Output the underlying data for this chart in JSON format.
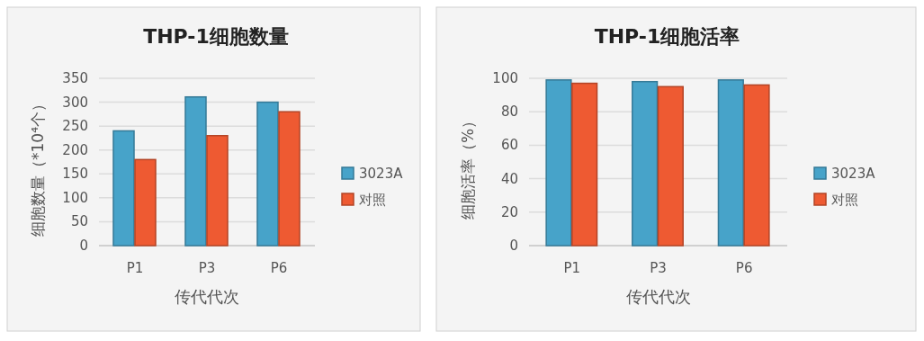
{
  "chart_data": [
    {
      "type": "bar",
      "title": "THP-1细胞数量",
      "xlabel": "传代代次",
      "ylabel": "细胞数量（*10⁴个）",
      "categories": [
        "P1",
        "P3",
        "P6"
      ],
      "series": [
        {
          "name": "3023A",
          "color": "#47a3c9",
          "values": [
            240,
            311,
            300
          ]
        },
        {
          "name": "对照",
          "color": "#ee5a32",
          "values": [
            180,
            230,
            280
          ]
        }
      ],
      "ylim": [
        0,
        350
      ],
      "yticks": [
        0,
        50,
        100,
        150,
        200,
        250,
        300,
        350
      ],
      "grid": "y",
      "legend": "right"
    },
    {
      "type": "bar",
      "title": "THP-1细胞活率",
      "xlabel": "传代代次",
      "ylabel": "细胞活率（%）",
      "categories": [
        "P1",
        "P3",
        "P6"
      ],
      "series": [
        {
          "name": "3023A",
          "color": "#47a3c9",
          "values": [
            99,
            98,
            99
          ]
        },
        {
          "name": "对照",
          "color": "#ee5a32",
          "values": [
            97,
            95,
            96
          ]
        }
      ],
      "ylim": [
        0,
        100
      ],
      "yticks": [
        0,
        20,
        40,
        60,
        80,
        100
      ],
      "grid": "y",
      "legend": "right"
    }
  ]
}
